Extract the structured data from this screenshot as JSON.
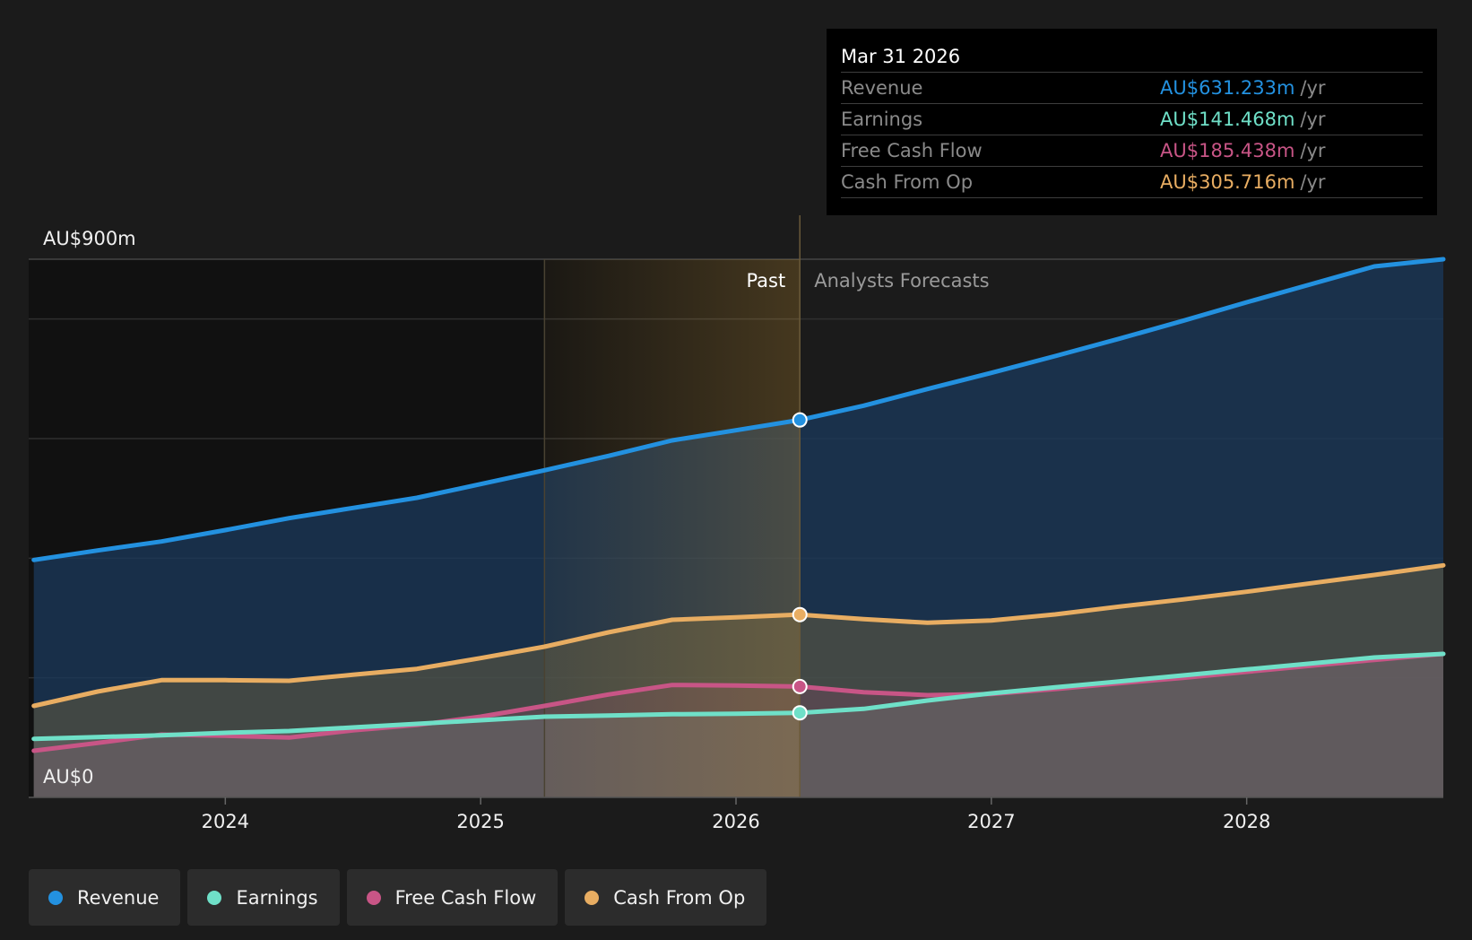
{
  "chart_data": {
    "type": "area",
    "x_unit": "year",
    "xlim": [
      2023.23,
      2028.77
    ],
    "ylim": [
      0,
      900
    ],
    "y_tick_labels": [
      "AU$900m",
      "AU$0"
    ],
    "x_ticks": [
      {
        "value": 2024,
        "label": "2024"
      },
      {
        "value": 2025,
        "label": "2025"
      },
      {
        "value": 2026,
        "label": "2026"
      },
      {
        "value": 2027,
        "label": "2027"
      },
      {
        "value": 2028,
        "label": "2028"
      }
    ],
    "grid_y": [
      200,
      400,
      600,
      800
    ],
    "past_label": "Past",
    "forecast_label": "Analysts Forecasts",
    "past_end": 2026.25,
    "highlight_start": 2025.25,
    "series": [
      {
        "name": "Revenue",
        "color": "#2391e0",
        "points": [
          [
            2023.25,
            397
          ],
          [
            2023.5,
            413
          ],
          [
            2023.75,
            428
          ],
          [
            2024,
            447
          ],
          [
            2024.25,
            467
          ],
          [
            2024.5,
            484
          ],
          [
            2024.75,
            501
          ],
          [
            2025,
            524
          ],
          [
            2025.25,
            547
          ],
          [
            2025.5,
            571
          ],
          [
            2025.75,
            597
          ],
          [
            2026,
            614
          ],
          [
            2026.25,
            631.233
          ],
          [
            2026.5,
            655
          ],
          [
            2026.75,
            683
          ],
          [
            2027,
            710
          ],
          [
            2027.25,
            738
          ],
          [
            2027.5,
            767
          ],
          [
            2027.75,
            797
          ],
          [
            2028,
            828
          ],
          [
            2028.25,
            858
          ],
          [
            2028.5,
            888
          ],
          [
            2028.77,
            900
          ]
        ]
      },
      {
        "name": "Cash From Op",
        "color": "#e8ad62",
        "points": [
          [
            2023.25,
            153
          ],
          [
            2023.5,
            177
          ],
          [
            2023.75,
            196
          ],
          [
            2024,
            196
          ],
          [
            2024.25,
            195
          ],
          [
            2024.5,
            205
          ],
          [
            2024.75,
            215
          ],
          [
            2025,
            233
          ],
          [
            2025.25,
            252
          ],
          [
            2025.5,
            276
          ],
          [
            2025.75,
            297
          ],
          [
            2026,
            301
          ],
          [
            2026.25,
            305.716
          ],
          [
            2026.5,
            298
          ],
          [
            2026.75,
            292
          ],
          [
            2027,
            296
          ],
          [
            2027.25,
            306
          ],
          [
            2027.5,
            319
          ],
          [
            2027.75,
            331
          ],
          [
            2028,
            344
          ],
          [
            2028.25,
            358
          ],
          [
            2028.5,
            372
          ],
          [
            2028.77,
            388
          ]
        ]
      },
      {
        "name": "Free Cash Flow",
        "color": "#c85586",
        "points": [
          [
            2023.25,
            78
          ],
          [
            2023.5,
            91
          ],
          [
            2023.75,
            105
          ],
          [
            2024,
            103
          ],
          [
            2024.25,
            100
          ],
          [
            2024.5,
            112
          ],
          [
            2024.75,
            121
          ],
          [
            2025,
            135
          ],
          [
            2025.25,
            153
          ],
          [
            2025.5,
            172
          ],
          [
            2025.75,
            188
          ],
          [
            2026,
            187
          ],
          [
            2026.25,
            185.438
          ],
          [
            2026.5,
            176
          ],
          [
            2026.75,
            171
          ],
          [
            2027,
            173
          ],
          [
            2027.25,
            181
          ],
          [
            2027.5,
            191
          ],
          [
            2027.75,
            200
          ],
          [
            2028,
            210
          ],
          [
            2028.25,
            220
          ],
          [
            2028.5,
            230
          ],
          [
            2028.77,
            240
          ]
        ]
      },
      {
        "name": "Earnings",
        "color": "#6fe0c8",
        "points": [
          [
            2023.25,
            98
          ],
          [
            2023.5,
            101
          ],
          [
            2023.75,
            104
          ],
          [
            2024,
            108
          ],
          [
            2024.25,
            111
          ],
          [
            2024.5,
            117
          ],
          [
            2024.75,
            123
          ],
          [
            2025,
            129
          ],
          [
            2025.25,
            135
          ],
          [
            2025.5,
            137
          ],
          [
            2025.75,
            139
          ],
          [
            2026,
            140
          ],
          [
            2026.25,
            141.468
          ],
          [
            2026.5,
            148
          ],
          [
            2026.75,
            162
          ],
          [
            2027,
            174
          ],
          [
            2027.25,
            184
          ],
          [
            2027.5,
            194
          ],
          [
            2027.75,
            204
          ],
          [
            2028,
            214
          ],
          [
            2028.25,
            224
          ],
          [
            2028.5,
            234
          ],
          [
            2028.77,
            240
          ]
        ]
      }
    ],
    "markers_at": 2026.25
  },
  "tooltip": {
    "date": "Mar 31 2026",
    "rows": [
      {
        "label": "Revenue",
        "value": "AU$631.233m",
        "unit": "/yr",
        "color": "#2391e0"
      },
      {
        "label": "Earnings",
        "value": "AU$141.468m",
        "unit": "/yr",
        "color": "#6fe0c8"
      },
      {
        "label": "Free Cash Flow",
        "value": "AU$185.438m",
        "unit": "/yr",
        "color": "#c85586"
      },
      {
        "label": "Cash From Op",
        "value": "AU$305.716m",
        "unit": "/yr",
        "color": "#e8ad62"
      }
    ]
  },
  "legend": [
    {
      "label": "Revenue",
      "color": "#2391e0"
    },
    {
      "label": "Earnings",
      "color": "#6fe0c8"
    },
    {
      "label": "Free Cash Flow",
      "color": "#c85586"
    },
    {
      "label": "Cash From Op",
      "color": "#e8ad62"
    }
  ]
}
